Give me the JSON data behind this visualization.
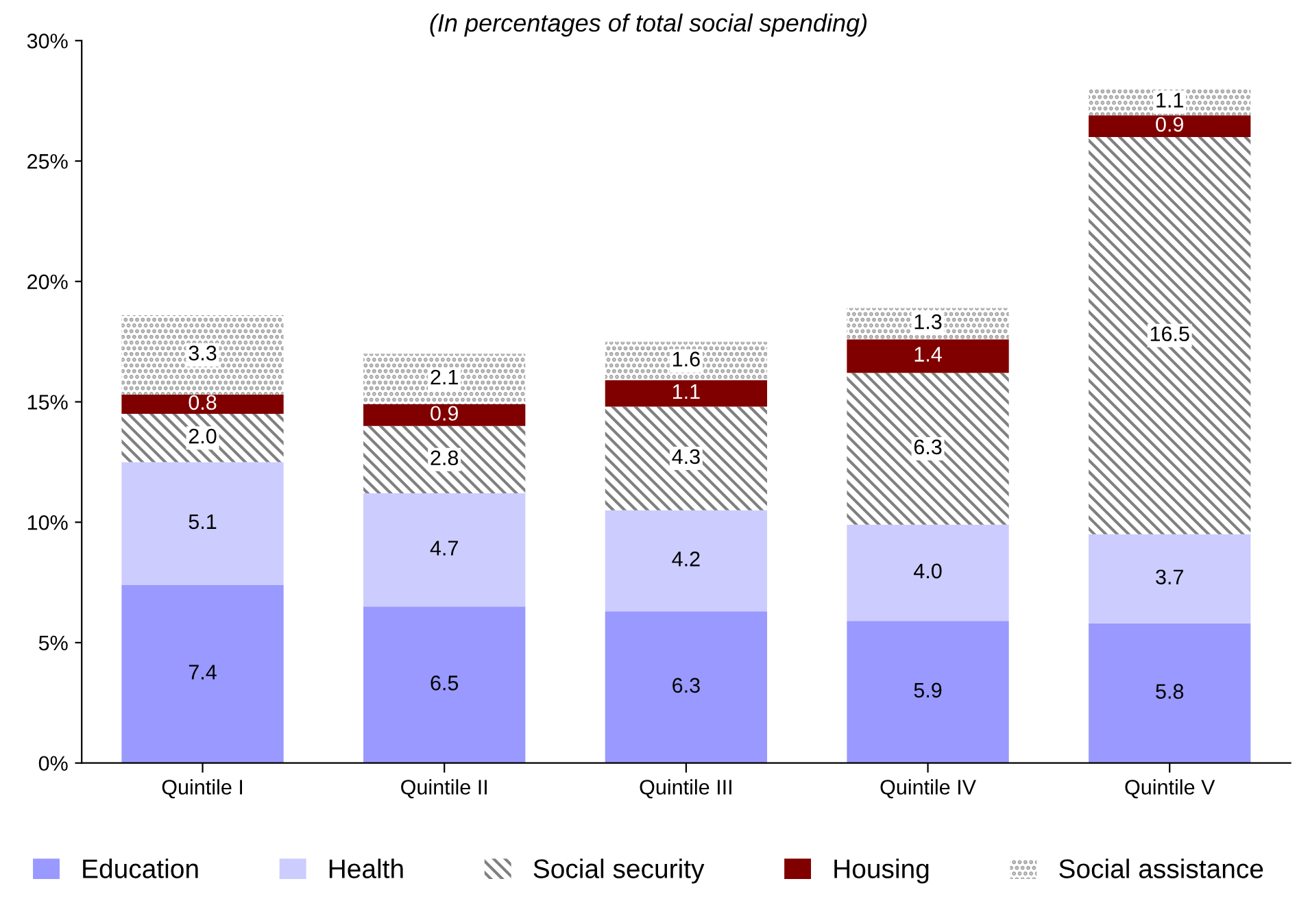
{
  "chart_data": {
    "type": "bar",
    "stacked": true,
    "subtitle": "(In percentages of total social spending)",
    "categories": [
      "Quintile I",
      "Quintile II",
      "Quintile III",
      "Quintile IV",
      "Quintile V"
    ],
    "series": [
      {
        "name": "Education",
        "color": "#9999ff",
        "values": [
          7.4,
          6.5,
          6.3,
          5.9,
          5.8
        ],
        "value_labels": [
          "7.4",
          "6.5",
          "6.3",
          "5.9",
          "5.8"
        ]
      },
      {
        "name": "Health",
        "color": "#ccccff",
        "values": [
          5.1,
          4.7,
          4.2,
          4.0,
          3.7
        ],
        "value_labels": [
          "5.1",
          "4.7",
          "4.2",
          "4.0",
          "3.7"
        ]
      },
      {
        "name": "Social security",
        "color": "#808080",
        "values": [
          2.0,
          2.8,
          4.3,
          6.3,
          16.5
        ],
        "value_labels": [
          "2.0",
          "2.8",
          "4.3",
          "6.3",
          "16.5"
        ]
      },
      {
        "name": "Housing",
        "color": "#800000",
        "values": [
          0.8,
          0.9,
          1.1,
          1.4,
          0.9
        ],
        "value_labels": [
          "0.8",
          "0.9",
          "1.1",
          "1.4",
          "0.9"
        ]
      },
      {
        "name": "Social assistance",
        "color": "#a0a0a0",
        "values": [
          3.3,
          2.1,
          1.6,
          1.3,
          1.1
        ],
        "value_labels": [
          "3.3",
          "2.1",
          "1.6",
          "1.3",
          "1.1"
        ]
      }
    ],
    "ylim": [
      0,
      30
    ],
    "yticks": [
      {
        "value": 0,
        "label": "0%"
      },
      {
        "value": 5,
        "label": "5%"
      },
      {
        "value": 10,
        "label": "10%"
      },
      {
        "value": 15,
        "label": "15%"
      },
      {
        "value": 20,
        "label": "20%"
      },
      {
        "value": 25,
        "label": "25%"
      },
      {
        "value": 30,
        "label": "30%"
      }
    ],
    "grid": false,
    "legend": "bottom"
  }
}
